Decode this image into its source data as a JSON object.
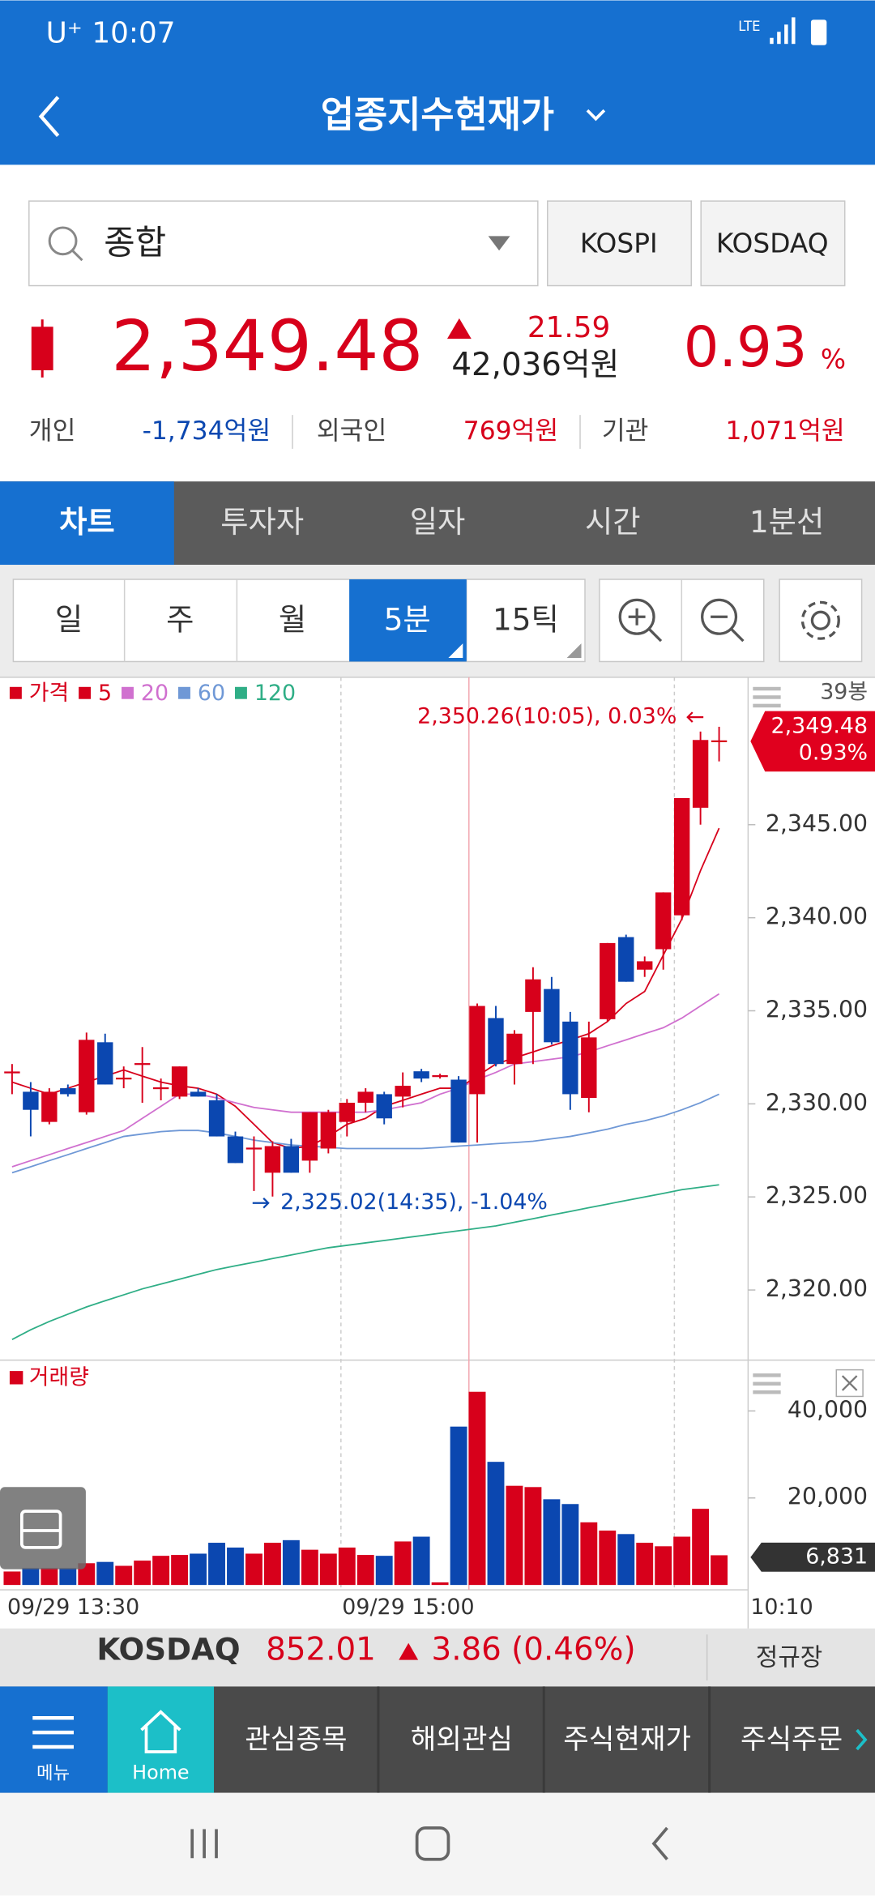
{
  "status_bar": {
    "carrier": "U⁺",
    "time": "10:07",
    "network": "LTE"
  },
  "header": {
    "title": "업종지수현재가"
  },
  "search": {
    "value": "종합",
    "buttons": [
      "KOSPI",
      "KOSDAQ"
    ]
  },
  "quote": {
    "price": "2,349.48",
    "change": "21.59",
    "amount": "42,036억원",
    "rate": "0.93",
    "rate_unit": "%"
  },
  "investors": [
    {
      "label": "개인",
      "value": "-1,734억원"
    },
    {
      "label": "외국인",
      "value": "769억원"
    },
    {
      "label": "기관",
      "value": "1,071억원"
    }
  ],
  "tabs": [
    "차트",
    "투자자",
    "일자",
    "시간",
    "1분선"
  ],
  "periods": [
    "일",
    "주",
    "월",
    "5분",
    "15틱"
  ],
  "chart_data": {
    "type": "candlestick",
    "legend_label": "가격",
    "bar_count": "39봉",
    "x": [
      "09/29 13:30",
      null,
      null,
      null,
      null,
      null,
      null,
      null,
      null,
      null,
      null,
      null,
      null,
      null,
      null,
      null,
      null,
      null,
      "09/29 15:00",
      null,
      null,
      null,
      null,
      null,
      null,
      null,
      null,
      null,
      null,
      null,
      null,
      null,
      null,
      null,
      null,
      null,
      null,
      null,
      null
    ],
    "cursor_time": "10:10",
    "open": [
      2331.69,
      2330.65,
      2329.03,
      2330.84,
      2329.55,
      2333.31,
      2331.36,
      2332.14,
      2330.84,
      2330.39,
      2330.65,
      2330.19,
      2328.25,
      2327.6,
      2326.3,
      2327.73,
      2326.95,
      2327.6,
      2329.03,
      2330.06,
      2330.52,
      2330.39,
      2331.75,
      2331.49,
      2331.3,
      2330.52,
      2334.61,
      2332.14,
      2334.94,
      2336.17,
      2334.42,
      2330.32,
      2334.55,
      2338.96,
      2337.21,
      2338.31,
      2340.13,
      2345.91,
      2349.48
    ],
    "high": [
      2332.14,
      2331.17,
      2330.84,
      2331.04,
      2333.83,
      2333.77,
      2332.01,
      2333.05,
      2331.36,
      2332.01,
      2330.84,
      2330.52,
      2328.51,
      2328.25,
      2327.99,
      2328.12,
      2329.55,
      2329.68,
      2330.26,
      2330.84,
      2330.65,
      2331.69,
      2331.88,
      2331.62,
      2331.49,
      2335.39,
      2335.26,
      2333.96,
      2337.34,
      2336.82,
      2334.94,
      2334.42,
      2338.64,
      2339.09,
      2337.92,
      2341.36,
      2346.43,
      2350.0,
      2350.26
    ],
    "low": [
      2330.52,
      2328.25,
      2328.9,
      2330.39,
      2329.42,
      2331.04,
      2330.84,
      2330.06,
      2330.19,
      2330.26,
      2330.39,
      2328.25,
      2326.82,
      2325.32,
      2325.02,
      2326.3,
      2326.3,
      2327.34,
      2328.25,
      2329.55,
      2328.9,
      2329.81,
      2331.17,
      2331.36,
      2327.92,
      2327.92,
      2332.01,
      2331.04,
      2332.14,
      2333.18,
      2329.68,
      2329.55,
      2334.42,
      2336.56,
      2336.82,
      2337.21,
      2339.87,
      2345.0,
      2348.4
    ],
    "close": [
      2331.69,
      2329.68,
      2330.65,
      2330.52,
      2333.44,
      2331.04,
      2331.36,
      2332.14,
      2330.84,
      2332.01,
      2330.39,
      2328.25,
      2326.82,
      2327.6,
      2327.73,
      2326.3,
      2329.55,
      2329.55,
      2330.06,
      2330.65,
      2329.22,
      2330.97,
      2331.36,
      2331.49,
      2327.92,
      2335.26,
      2332.14,
      2333.77,
      2336.69,
      2333.31,
      2330.52,
      2333.57,
      2338.64,
      2336.56,
      2337.66,
      2341.36,
      2346.43,
      2349.55,
      2349.48
    ],
    "up_color": "#d7001b",
    "down_color": "#0b47b0",
    "series": [
      {
        "name": "5",
        "color": "#d7001b",
        "values": [
          2331.17,
          2330.84,
          2330.52,
          2330.84,
          2331.17,
          2331.49,
          2331.82,
          2331.49,
          2331.17,
          2330.97,
          2330.84,
          2330.52,
          2329.87,
          2328.9,
          2327.92,
          2327.6,
          2327.73,
          2328.25,
          2328.9,
          2329.22,
          2329.87,
          2330.19,
          2330.52,
          2330.84,
          2330.84,
          2331.49,
          2332.14,
          2332.47,
          2332.79,
          2333.12,
          2333.44,
          2333.77,
          2334.42,
          2335.39,
          2336.04,
          2337.99,
          2339.94,
          2342.53,
          2344.81
        ]
      },
      {
        "name": "20",
        "color": "#d070cf",
        "values": [
          2326.62,
          2326.95,
          2327.27,
          2327.6,
          2327.92,
          2328.25,
          2328.57,
          2329.22,
          2329.87,
          2330.52,
          2330.52,
          2330.32,
          2330.06,
          2329.81,
          2329.68,
          2329.55,
          2329.55,
          2329.55,
          2329.55,
          2329.55,
          2329.68,
          2329.87,
          2330.06,
          2330.52,
          2330.84,
          2331.3,
          2331.69,
          2332.14,
          2332.27,
          2332.4,
          2332.53,
          2332.79,
          2333.12,
          2333.44,
          2333.77,
          2334.09,
          2334.61,
          2335.26,
          2335.91
        ]
      },
      {
        "name": "60",
        "color": "#6f98d6",
        "values": [
          2326.3,
          2326.62,
          2326.95,
          2327.27,
          2327.6,
          2327.92,
          2328.25,
          2328.38,
          2328.51,
          2328.57,
          2328.57,
          2328.44,
          2328.25,
          2328.05,
          2327.92,
          2327.79,
          2327.73,
          2327.66,
          2327.6,
          2327.6,
          2327.6,
          2327.6,
          2327.6,
          2327.66,
          2327.73,
          2327.79,
          2327.86,
          2327.92,
          2327.99,
          2328.12,
          2328.25,
          2328.44,
          2328.64,
          2328.9,
          2329.09,
          2329.35,
          2329.68,
          2330.06,
          2330.52
        ]
      },
      {
        "name": "120",
        "color": "#2fae86",
        "values": [
          2317.34,
          2317.86,
          2318.31,
          2318.7,
          2319.09,
          2319.42,
          2319.74,
          2320.06,
          2320.32,
          2320.58,
          2320.84,
          2321.1,
          2321.3,
          2321.49,
          2321.69,
          2321.88,
          2322.08,
          2322.27,
          2322.4,
          2322.53,
          2322.66,
          2322.79,
          2322.92,
          2323.05,
          2323.18,
          2323.31,
          2323.44,
          2323.64,
          2323.83,
          2324.03,
          2324.22,
          2324.42,
          2324.61,
          2324.81,
          2325.0,
          2325.19,
          2325.39,
          2325.52,
          2325.65
        ]
      }
    ],
    "ylim": [
      2316.23,
      2352.92
    ],
    "yticks": [
      {
        "value": 2345,
        "label": "2,345.00"
      },
      {
        "value": 2340,
        "label": "2,340.00"
      },
      {
        "value": 2335,
        "label": "2,335.00"
      },
      {
        "value": 2330,
        "label": "2,330.00"
      },
      {
        "value": 2325,
        "label": "2,325.00"
      },
      {
        "value": 2320,
        "label": "2,320.00"
      }
    ],
    "annotations": [
      "2,350.26(10:05), 0.03%",
      "2,325.02(14:35), -1.04%"
    ],
    "last_price_label": "2,349.48",
    "last_rate_label": "0.93%",
    "volume": {
      "name": "거래량",
      "values": [
        3100,
        3900,
        3900,
        3900,
        5000,
        5300,
        4400,
        5600,
        6700,
        6900,
        7200,
        9700,
        8600,
        7200,
        9700,
        10300,
        8100,
        7200,
        8600,
        6900,
        6700,
        10000,
        11100,
        600,
        36400,
        44400,
        28300,
        22800,
        22500,
        19700,
        18600,
        14400,
        12500,
        11700,
        9700,
        8900,
        11100,
        17500,
        6831
      ],
      "last_label": "6,831",
      "ylim": [
        0,
        51670
      ],
      "yticks": [
        {
          "value": 40000,
          "label": "40,000"
        },
        {
          "value": 20000,
          "label": "20,000"
        }
      ]
    }
  },
  "market_bar": {
    "name": "KOSDAQ",
    "value": "852.01",
    "change": "3.86 (0.46%)",
    "session": "정규장"
  },
  "bottom_nav": {
    "menu": "메뉴",
    "home": "Home",
    "items": [
      "관심종목",
      "해외관심",
      "주식현재가",
      "주식주문"
    ]
  }
}
